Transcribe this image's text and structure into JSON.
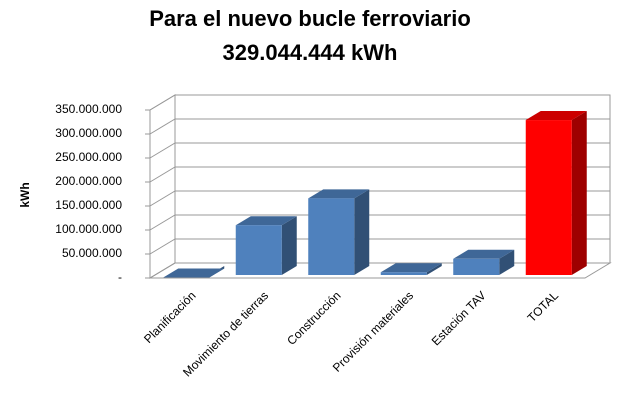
{
  "chart_data": {
    "type": "bar3d",
    "title": "Para el nuevo bucle ferroviario",
    "subtitle": "329.044.444 kWh",
    "y_label": "kWh",
    "categories": [
      "Planificación",
      "Movimiento de tierras",
      "Construcción",
      "Provisión materiales",
      "Estación TAV",
      "TOTAL"
    ],
    "values": [
      1000000,
      110000000,
      166000000,
      12000000,
      40000000,
      329044444
    ],
    "colors": [
      "#4f81bd",
      "#4f81bd",
      "#4f81bd",
      "#4f81bd",
      "#4f81bd",
      "#ff0000"
    ],
    "ylim": [
      0,
      350000000
    ],
    "yticks": [
      {
        "value": 0,
        "label": "-"
      },
      {
        "value": 50000000,
        "label": "50.000.000"
      },
      {
        "value": 100000000,
        "label": "100.000.000"
      },
      {
        "value": 150000000,
        "label": "150.000.000"
      },
      {
        "value": 200000000,
        "label": "200.000.000"
      },
      {
        "value": 250000000,
        "label": "250.000.000"
      },
      {
        "value": 300000000,
        "label": "300.000.000"
      },
      {
        "value": 350000000,
        "label": "350.000.000"
      }
    ],
    "grid": true
  }
}
